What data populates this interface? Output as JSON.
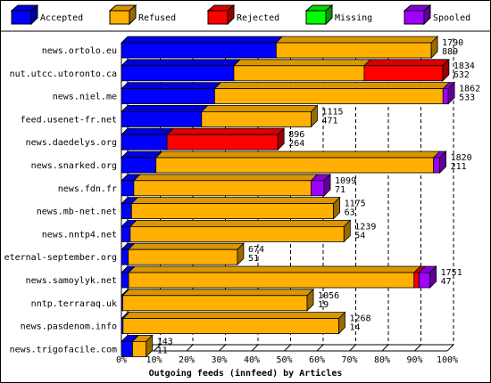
{
  "chart_data": {
    "type": "bar",
    "stacked": true,
    "orientation": "horizontal",
    "style": "3d",
    "title": "",
    "xlabel": "Outgoing feeds (innfeed) by Articles",
    "ylabel": "",
    "xlim": [
      0,
      100
    ],
    "x_ticks": [
      "0%",
      "10%",
      "20%",
      "30%",
      "40%",
      "50%",
      "60%",
      "70%",
      "80%",
      "90%",
      "100%"
    ],
    "grid": "vertical-dashed",
    "legend_position": "top",
    "legend": [
      {
        "name": "Accepted",
        "color": "#0000ff"
      },
      {
        "name": "Refused",
        "color": "#ffb000"
      },
      {
        "name": "Rejected",
        "color": "#ff0000"
      },
      {
        "name": "Missing",
        "color": "#00ff00"
      },
      {
        "name": "Spooled",
        "color": "#a000ff"
      }
    ],
    "categories": [
      "news.ortolo.eu",
      "nut.utcc.utoronto.ca",
      "news.niel.me",
      "feed.usenet-fr.net",
      "news.daedelys.org",
      "news.snarked.org",
      "news.fdn.fr",
      "news.mb-net.net",
      "news.nntp4.net",
      "eternal-september.org",
      "news.samoylyk.net",
      "nntp.terraraq.uk",
      "news.pasdenom.info",
      "news.trigofacile.com"
    ],
    "top_values": [
      "1790",
      "1834",
      "1862",
      "1115",
      "896",
      "1820",
      "1099",
      "1175",
      "1239",
      "674",
      "1751",
      "1056",
      "1268",
      "143"
    ],
    "bottom_values": [
      "889",
      "632",
      "533",
      "471",
      "264",
      "211",
      "71",
      "63",
      "54",
      "51",
      "47",
      "19",
      "14",
      "11"
    ],
    "series": [
      {
        "name": "Accepted",
        "values": [
          47.5,
          34.5,
          28.6,
          24.6,
          14.0,
          10.6,
          3.8,
          3.1,
          2.7,
          2.1,
          2.2,
          0.4,
          0.5,
          3.4
        ]
      },
      {
        "name": "Refused",
        "values": [
          47.6,
          40.0,
          70.1,
          33.6,
          0,
          85.2,
          54.4,
          62.0,
          65.6,
          33.5,
          87.6,
          56.6,
          66.2,
          4.2
        ]
      },
      {
        "name": "Rejected",
        "values": [
          0,
          24.1,
          0,
          0,
          34.0,
          0,
          0,
          0,
          0,
          0,
          1.5,
          0,
          0,
          0
        ]
      },
      {
        "name": "Missing",
        "values": [
          0,
          0,
          0,
          0,
          0,
          0,
          0,
          0,
          0,
          0,
          0,
          0,
          0,
          0
        ]
      },
      {
        "name": "Spooled",
        "values": [
          0,
          0,
          1.6,
          0,
          0,
          1.9,
          4.0,
          0,
          0,
          0,
          3.4,
          0,
          0,
          0
        ]
      }
    ]
  }
}
